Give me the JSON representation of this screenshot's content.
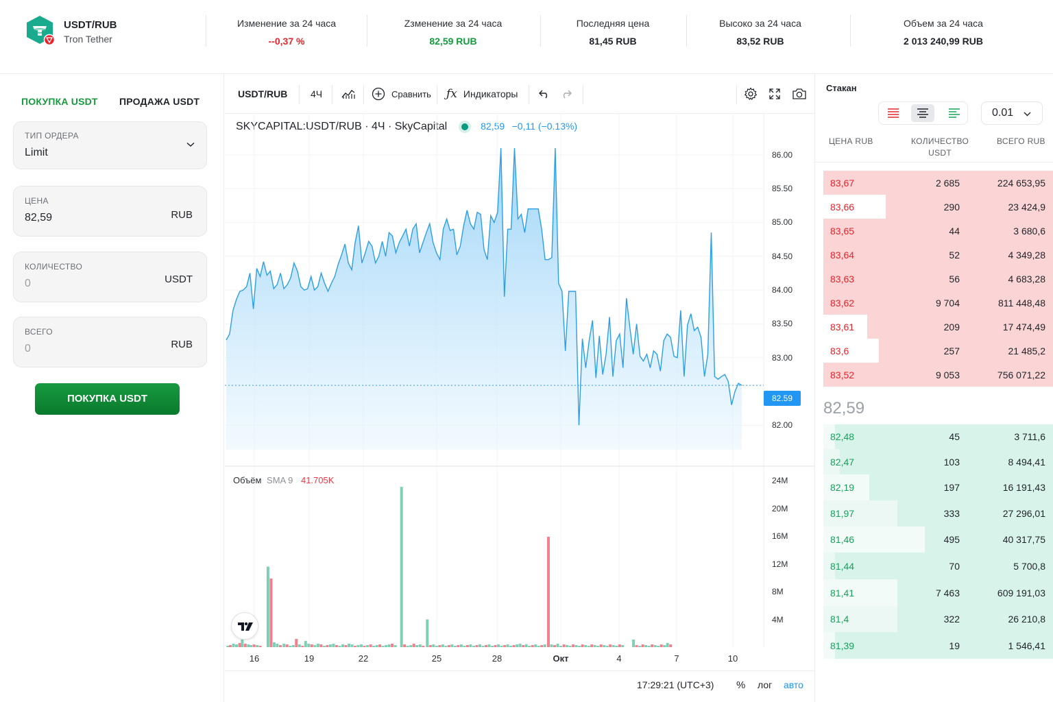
{
  "header": {
    "pair": "USDT/RUB",
    "pair_name": "Tron Tether",
    "stats": [
      {
        "label": "Изменение за 24 часа",
        "value": "--0,37 %",
        "color": "#e5242b"
      },
      {
        "label": "Zзменение за 24 часа",
        "value": "82,59 RUB",
        "color": "#139b3c"
      },
      {
        "label": "Последняя цена",
        "value": "81,45 RUB",
        "color": "#1f2329"
      },
      {
        "label": "Высоко за 24 часа",
        "value": "83,52 RUB",
        "color": "#1f2329"
      },
      {
        "label": "Объем за 24 часа",
        "value": "2 013 240,99 RUB",
        "color": "#1f2329"
      }
    ]
  },
  "order_form": {
    "tab_buy": "ПОКУПКА USDT",
    "tab_sell": "ПРОДАЖА USDT",
    "order_type_label": "ТИП ОРДЕРА",
    "order_type_value": "Limit",
    "price_label": "ЦЕНА",
    "price_value": "82,59",
    "price_unit": "RUB",
    "qty_label": "КОЛИЧЕСТВО",
    "qty_value": "0",
    "qty_unit": "USDT",
    "total_label": "ВСЕГО",
    "total_value": "0",
    "total_unit": "RUB",
    "submit_label": "ПОКУПКА USDT"
  },
  "chart_toolbar": {
    "symbol": "USDT/RUB",
    "interval": "4Ч",
    "compare": "Сравнить",
    "indicators": "Индикаторы"
  },
  "chart_legend": {
    "title": "SKYCAPITAL:USDT/RUB · 4Ч · SkyCapital",
    "price": "82,59",
    "change": "−0,11 (−0.13%)"
  },
  "chart_data": {
    "type": "area",
    "y_ticks": [
      "86.00",
      "85.50",
      "85.00",
      "84.50",
      "84.00",
      "83.50",
      "83.00",
      "82.00"
    ],
    "ylim": [
      81.8,
      86.1
    ],
    "current_price": "82.59",
    "x_ticks": [
      "16",
      "19",
      "22",
      "25",
      "28",
      "Окт",
      "4",
      "7",
      "10"
    ],
    "price_series": [
      83.26,
      83.35,
      83.7,
      83.86,
      83.98,
      84.0,
      84.05,
      84.25,
      83.72,
      84.32,
      84.2,
      84.42,
      84.22,
      84.28,
      84.02,
      84.08,
      84.25,
      84.02,
      84.08,
      84.18,
      84.4,
      84.28,
      84.05,
      84.0,
      84.02,
      84.2,
      84.0,
      84.05,
      84.25,
      84.1,
      83.98,
      84.1,
      84.2,
      84.38,
      84.52,
      84.68,
      84.4,
      84.3,
      84.7,
      84.95,
      84.4,
      84.55,
      84.72,
      84.65,
      84.4,
      84.5,
      84.72,
      84.5,
      84.85,
      84.8,
      84.55,
      84.7,
      84.8,
      84.9,
      84.65,
      84.9,
      84.98,
      84.55,
      84.7,
      84.85,
      84.98,
      84.7,
      84.55,
      84.45,
      84.9,
      85.05,
      84.88,
      84.9,
      84.52,
      84.65,
      84.95,
      85.18,
      84.98,
      84.9,
      85.15,
      85.12,
      84.6,
      84.45,
      85.1,
      85.0,
      85.15,
      86.1,
      83.9,
      84.9,
      84.9,
      86.1,
      85.05,
      85.12,
      84.85,
      85.2,
      85.2,
      85.2,
      85.2,
      84.9,
      84.45,
      84.45,
      84.48,
      86.1,
      84.1,
      83.98,
      83.1,
      83.98,
      83.98,
      83.98,
      82.0,
      83.28,
      82.85,
      83.25,
      83.55,
      82.7,
      83.32,
      82.75,
      83.05,
      83.6,
      82.72,
      83.25,
      83.35,
      82.85,
      83.88,
      83.45,
      83.05,
      83.5,
      83.02,
      82.95,
      83.05,
      82.85,
      83.1,
      83.05,
      82.8,
      83.25,
      83.35,
      83.3,
      83.02,
      83.0,
      83.7,
      82.72,
      83.48,
      83.65,
      83.4,
      83.45,
      83.3,
      82.72,
      83.05,
      84.85,
      82.72,
      82.68,
      82.72,
      82.75,
      82.65,
      82.3,
      82.5,
      82.62,
      82.59
    ],
    "volume_legend": "Объём",
    "volume_sma_label": "SMA 9",
    "volume_sma_value": "41.705K",
    "volume_ticks": [
      "24M",
      "20M",
      "16M",
      "12M",
      "8M",
      "4M"
    ],
    "volume_ylim": [
      0,
      24
    ],
    "volume_series": [
      {
        "x": 0.003,
        "v": 0.2,
        "up": true
      },
      {
        "x": 0.008,
        "v": 0.3,
        "up": false
      },
      {
        "x": 0.014,
        "v": 0.5,
        "up": true
      },
      {
        "x": 0.02,
        "v": 0.4,
        "up": true
      },
      {
        "x": 0.026,
        "v": 0.6,
        "up": false
      },
      {
        "x": 0.031,
        "v": 1.1,
        "up": true
      },
      {
        "x": 0.037,
        "v": 0.5,
        "up": false
      },
      {
        "x": 0.043,
        "v": 0.4,
        "up": true
      },
      {
        "x": 0.048,
        "v": 0.3,
        "up": true
      },
      {
        "x": 0.054,
        "v": 0.4,
        "up": false
      },
      {
        "x": 0.06,
        "v": 0.3,
        "up": true
      },
      {
        "x": 0.066,
        "v": 0.2,
        "up": false
      },
      {
        "x": 0.081,
        "v": 11.6,
        "up": true
      },
      {
        "x": 0.087,
        "v": 9.9,
        "up": false
      },
      {
        "x": 0.093,
        "v": 0.7,
        "up": true
      },
      {
        "x": 0.099,
        "v": 0.5,
        "up": true
      },
      {
        "x": 0.105,
        "v": 0.3,
        "up": false
      },
      {
        "x": 0.112,
        "v": 0.5,
        "up": true
      },
      {
        "x": 0.118,
        "v": 0.4,
        "up": false
      },
      {
        "x": 0.124,
        "v": 0.2,
        "up": true
      },
      {
        "x": 0.13,
        "v": 0.3,
        "up": true
      },
      {
        "x": 0.136,
        "v": 1.2,
        "up": false
      },
      {
        "x": 0.142,
        "v": 0.4,
        "up": true
      },
      {
        "x": 0.148,
        "v": 0.2,
        "up": false
      },
      {
        "x": 0.154,
        "v": 0.9,
        "up": true
      },
      {
        "x": 0.16,
        "v": 0.5,
        "up": true
      },
      {
        "x": 0.166,
        "v": 0.4,
        "up": false
      },
      {
        "x": 0.172,
        "v": 0.3,
        "up": true
      },
      {
        "x": 0.178,
        "v": 0.5,
        "up": true
      },
      {
        "x": 0.184,
        "v": 0.4,
        "up": false
      },
      {
        "x": 0.19,
        "v": 0.2,
        "up": true
      },
      {
        "x": 0.196,
        "v": 0.3,
        "up": false
      },
      {
        "x": 0.202,
        "v": 0.4,
        "up": true
      },
      {
        "x": 0.208,
        "v": 0.5,
        "up": true
      },
      {
        "x": 0.214,
        "v": 0.3,
        "up": false
      },
      {
        "x": 0.22,
        "v": 0.2,
        "up": true
      },
      {
        "x": 0.226,
        "v": 0.4,
        "up": true
      },
      {
        "x": 0.232,
        "v": 0.3,
        "up": false
      },
      {
        "x": 0.238,
        "v": 0.5,
        "up": true
      },
      {
        "x": 0.244,
        "v": 0.4,
        "up": true
      },
      {
        "x": 0.25,
        "v": 0.2,
        "up": false
      },
      {
        "x": 0.256,
        "v": 0.3,
        "up": true
      },
      {
        "x": 0.262,
        "v": 0.4,
        "up": true
      },
      {
        "x": 0.268,
        "v": 0.2,
        "up": false
      },
      {
        "x": 0.274,
        "v": 0.3,
        "up": true
      },
      {
        "x": 0.28,
        "v": 0.4,
        "up": false
      },
      {
        "x": 0.286,
        "v": 0.2,
        "up": true
      },
      {
        "x": 0.292,
        "v": 0.3,
        "up": true
      },
      {
        "x": 0.298,
        "v": 0.4,
        "up": false
      },
      {
        "x": 0.304,
        "v": 0.2,
        "up": true
      },
      {
        "x": 0.31,
        "v": 0.3,
        "up": true
      },
      {
        "x": 0.316,
        "v": 0.4,
        "up": true
      },
      {
        "x": 0.322,
        "v": 0.5,
        "up": false
      },
      {
        "x": 0.328,
        "v": 0.3,
        "up": true
      },
      {
        "x": 0.34,
        "v": 23.1,
        "up": true
      },
      {
        "x": 0.346,
        "v": 0.4,
        "up": false
      },
      {
        "x": 0.352,
        "v": 0.2,
        "up": true
      },
      {
        "x": 0.358,
        "v": 0.3,
        "up": true
      },
      {
        "x": 0.364,
        "v": 0.5,
        "up": false
      },
      {
        "x": 0.37,
        "v": 0.3,
        "up": true
      },
      {
        "x": 0.376,
        "v": 0.4,
        "up": true
      },
      {
        "x": 0.382,
        "v": 0.2,
        "up": false
      },
      {
        "x": 0.39,
        "v": 4.0,
        "up": true
      },
      {
        "x": 0.396,
        "v": 0.3,
        "up": false
      },
      {
        "x": 0.402,
        "v": 0.4,
        "up": true
      },
      {
        "x": 0.408,
        "v": 0.2,
        "up": true
      },
      {
        "x": 0.414,
        "v": 0.3,
        "up": false
      },
      {
        "x": 0.42,
        "v": 0.4,
        "up": true
      },
      {
        "x": 0.426,
        "v": 0.2,
        "up": true
      },
      {
        "x": 0.432,
        "v": 0.3,
        "up": false
      },
      {
        "x": 0.438,
        "v": 0.4,
        "up": true
      },
      {
        "x": 0.444,
        "v": 0.2,
        "up": true
      },
      {
        "x": 0.45,
        "v": 0.3,
        "up": false
      },
      {
        "x": 0.456,
        "v": 0.4,
        "up": true
      },
      {
        "x": 0.462,
        "v": 0.2,
        "up": true
      },
      {
        "x": 0.468,
        "v": 0.3,
        "up": false
      },
      {
        "x": 0.474,
        "v": 0.4,
        "up": true
      },
      {
        "x": 0.48,
        "v": 0.2,
        "up": true
      },
      {
        "x": 0.486,
        "v": 0.3,
        "up": false
      },
      {
        "x": 0.492,
        "v": 0.4,
        "up": true
      },
      {
        "x": 0.498,
        "v": 0.2,
        "up": true
      },
      {
        "x": 0.504,
        "v": 0.3,
        "up": false
      },
      {
        "x": 0.51,
        "v": 0.4,
        "up": true
      },
      {
        "x": 0.516,
        "v": 0.2,
        "up": true
      },
      {
        "x": 0.522,
        "v": 0.3,
        "up": false
      },
      {
        "x": 0.528,
        "v": 0.4,
        "up": true
      },
      {
        "x": 0.534,
        "v": 0.2,
        "up": true
      },
      {
        "x": 0.54,
        "v": 0.3,
        "up": false
      },
      {
        "x": 0.546,
        "v": 0.4,
        "up": true
      },
      {
        "x": 0.552,
        "v": 0.2,
        "up": true
      },
      {
        "x": 0.558,
        "v": 0.3,
        "up": false
      },
      {
        "x": 0.564,
        "v": 0.4,
        "up": true
      },
      {
        "x": 0.57,
        "v": 0.5,
        "up": true
      },
      {
        "x": 0.576,
        "v": 0.3,
        "up": false
      },
      {
        "x": 0.582,
        "v": 0.4,
        "up": true
      },
      {
        "x": 0.588,
        "v": 0.2,
        "up": true
      },
      {
        "x": 0.594,
        "v": 0.3,
        "up": false
      },
      {
        "x": 0.6,
        "v": 0.4,
        "up": true
      },
      {
        "x": 0.606,
        "v": 0.2,
        "up": true
      },
      {
        "x": 0.612,
        "v": 0.3,
        "up": false
      },
      {
        "x": 0.618,
        "v": 0.4,
        "up": true
      },
      {
        "x": 0.625,
        "v": 15.9,
        "up": false
      },
      {
        "x": 0.631,
        "v": 0.4,
        "up": true
      },
      {
        "x": 0.637,
        "v": 0.3,
        "up": false
      },
      {
        "x": 0.643,
        "v": 0.5,
        "up": true
      },
      {
        "x": 0.649,
        "v": 0.2,
        "up": true
      },
      {
        "x": 0.655,
        "v": 0.4,
        "up": false
      },
      {
        "x": 0.661,
        "v": 0.3,
        "up": true
      },
      {
        "x": 0.667,
        "v": 0.2,
        "up": true
      },
      {
        "x": 0.673,
        "v": 0.4,
        "up": false
      },
      {
        "x": 0.679,
        "v": 0.3,
        "up": true
      },
      {
        "x": 0.685,
        "v": 0.2,
        "up": true
      },
      {
        "x": 0.691,
        "v": 0.4,
        "up": false
      },
      {
        "x": 0.697,
        "v": 0.3,
        "up": true
      },
      {
        "x": 0.703,
        "v": 0.2,
        "up": true
      },
      {
        "x": 0.709,
        "v": 0.4,
        "up": false
      },
      {
        "x": 0.715,
        "v": 0.3,
        "up": true
      },
      {
        "x": 0.721,
        "v": 0.2,
        "up": true
      },
      {
        "x": 0.727,
        "v": 0.4,
        "up": false
      },
      {
        "x": 0.733,
        "v": 0.3,
        "up": true
      },
      {
        "x": 0.739,
        "v": 0.2,
        "up": true
      },
      {
        "x": 0.745,
        "v": 0.4,
        "up": false
      },
      {
        "x": 0.751,
        "v": 0.3,
        "up": true
      },
      {
        "x": 0.757,
        "v": 0.2,
        "up": true
      },
      {
        "x": 0.763,
        "v": 0.4,
        "up": false
      },
      {
        "x": 0.769,
        "v": 0.3,
        "up": true
      },
      {
        "x": 0.79,
        "v": 1.1,
        "up": true
      },
      {
        "x": 0.796,
        "v": 0.3,
        "up": false
      },
      {
        "x": 0.802,
        "v": 0.2,
        "up": true
      },
      {
        "x": 0.808,
        "v": 0.4,
        "up": false
      },
      {
        "x": 0.814,
        "v": 0.3,
        "up": true
      },
      {
        "x": 0.82,
        "v": 0.2,
        "up": true
      },
      {
        "x": 0.826,
        "v": 0.4,
        "up": false
      },
      {
        "x": 0.832,
        "v": 0.3,
        "up": true
      },
      {
        "x": 0.838,
        "v": 0.2,
        "up": true
      },
      {
        "x": 0.844,
        "v": 0.4,
        "up": false
      },
      {
        "x": 0.85,
        "v": 0.3,
        "up": true
      },
      {
        "x": 0.856,
        "v": 0.6,
        "up": true
      },
      {
        "x": 0.862,
        "v": 0.4,
        "up": false
      }
    ]
  },
  "chart_bottom": {
    "time": "17:29:21 (UTC+3)",
    "pct": "%",
    "log": "лог",
    "auto": "авто"
  },
  "order_book": {
    "title": "Стакан",
    "step": "0.01",
    "col_price": "ЦЕНА RUB",
    "col_qty_1": "КОЛИЧЕСТВО",
    "col_qty_2": "USDT",
    "col_total": "ВСЕГО RUB",
    "mid_price": "82,59",
    "asks": [
      {
        "price": "83,67",
        "qty": "2 685",
        "total": "224 653,95",
        "depth": 1.0
      },
      {
        "price": "83,66",
        "qty": "290",
        "total": "23 424,9",
        "depth": 0.73
      },
      {
        "price": "83,65",
        "qty": "44",
        "total": "3 680,6",
        "depth": 1.0
      },
      {
        "price": "83,64",
        "qty": "52",
        "total": "4 349,28",
        "depth": 1.0
      },
      {
        "price": "83,63",
        "qty": "56",
        "total": "4 683,28",
        "depth": 1.0
      },
      {
        "price": "83,62",
        "qty": "9 704",
        "total": "811 448,48",
        "depth": 1.0
      },
      {
        "price": "83,61",
        "qty": "209",
        "total": "17 474,49",
        "depth": 0.81
      },
      {
        "price": "83,6",
        "qty": "257",
        "total": "21 485,2",
        "depth": 0.76
      },
      {
        "price": "83,52",
        "qty": "9 053",
        "total": "756 071,22",
        "depth": 1.0
      }
    ],
    "bids": [
      {
        "price": "82,48",
        "qty": "45",
        "total": "3 711,6",
        "depth": 0.95
      },
      {
        "price": "82,47",
        "qty": "103",
        "total": "8 494,41",
        "depth": 0.93
      },
      {
        "price": "82,19",
        "qty": "197",
        "total": "16 191,43",
        "depth": 0.8
      },
      {
        "price": "81,97",
        "qty": "333",
        "total": "27 296,01",
        "depth": 0.68
      },
      {
        "price": "81,46",
        "qty": "495",
        "total": "40 317,75",
        "depth": 0.56
      },
      {
        "price": "81,44",
        "qty": "70",
        "total": "5 700,8",
        "depth": 0.95
      },
      {
        "price": "81,41",
        "qty": "7 463",
        "total": "609 191,03",
        "depth": 0.68
      },
      {
        "price": "81,4",
        "qty": "322",
        "total": "26 210,8",
        "depth": 0.68
      },
      {
        "price": "81,39",
        "qty": "19",
        "total": "1 546,41",
        "depth": 0.95
      }
    ]
  },
  "colors": {
    "accent_green": "#139b3c",
    "accent_red": "#e5242b",
    "chart_line": "#2b9fe6",
    "vol_up": "#7fcfb7",
    "vol_down": "#f47f8e",
    "ask_bg": "#fbd5d5",
    "bid_bg": "#d8f3ea"
  }
}
